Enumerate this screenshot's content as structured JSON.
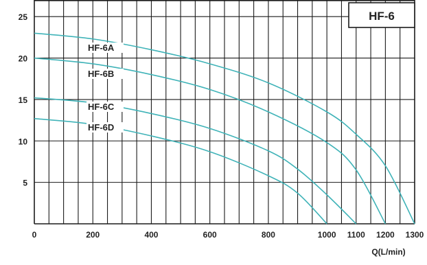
{
  "chart_data": {
    "type": "line",
    "title": "HF-6",
    "xlabel": "Q(L/min)",
    "ylabel": "",
    "xlim": [
      0,
      1300
    ],
    "ylim": [
      0,
      27
    ],
    "x_ticks": [
      0,
      200,
      400,
      600,
      800,
      1000,
      1100,
      1200,
      1300
    ],
    "y_ticks": [
      5,
      10,
      15,
      20,
      25
    ],
    "grid": true,
    "legend": "none",
    "series": [
      {
        "name": "HF-6A",
        "points": [
          [
            0,
            23.0
          ],
          [
            200,
            22.3
          ],
          [
            400,
            21.0
          ],
          [
            600,
            19.3
          ],
          [
            800,
            17.0
          ],
          [
            1000,
            13.5
          ],
          [
            1100,
            10.8
          ],
          [
            1200,
            7.0
          ],
          [
            1300,
            0
          ]
        ]
      },
      {
        "name": "HF-6B",
        "points": [
          [
            0,
            20.0
          ],
          [
            200,
            19.3
          ],
          [
            400,
            18.0
          ],
          [
            600,
            16.2
          ],
          [
            800,
            13.5
          ],
          [
            1000,
            9.8
          ],
          [
            1100,
            6.5
          ],
          [
            1200,
            0
          ]
        ]
      },
      {
        "name": "HF-6C",
        "points": [
          [
            0,
            15.2
          ],
          [
            200,
            14.6
          ],
          [
            400,
            13.3
          ],
          [
            600,
            11.5
          ],
          [
            800,
            8.8
          ],
          [
            900,
            6.6
          ],
          [
            1000,
            3.5
          ],
          [
            1100,
            0
          ]
        ]
      },
      {
        "name": "HF-6D",
        "points": [
          [
            0,
            12.7
          ],
          [
            200,
            12.0
          ],
          [
            400,
            10.6
          ],
          [
            600,
            8.7
          ],
          [
            800,
            5.8
          ],
          [
            900,
            3.7
          ],
          [
            1000,
            0
          ]
        ]
      }
    ],
    "colors": {
      "curve": "#3fb3b8",
      "grid": "#1a1a1a",
      "text": "#222222"
    }
  }
}
